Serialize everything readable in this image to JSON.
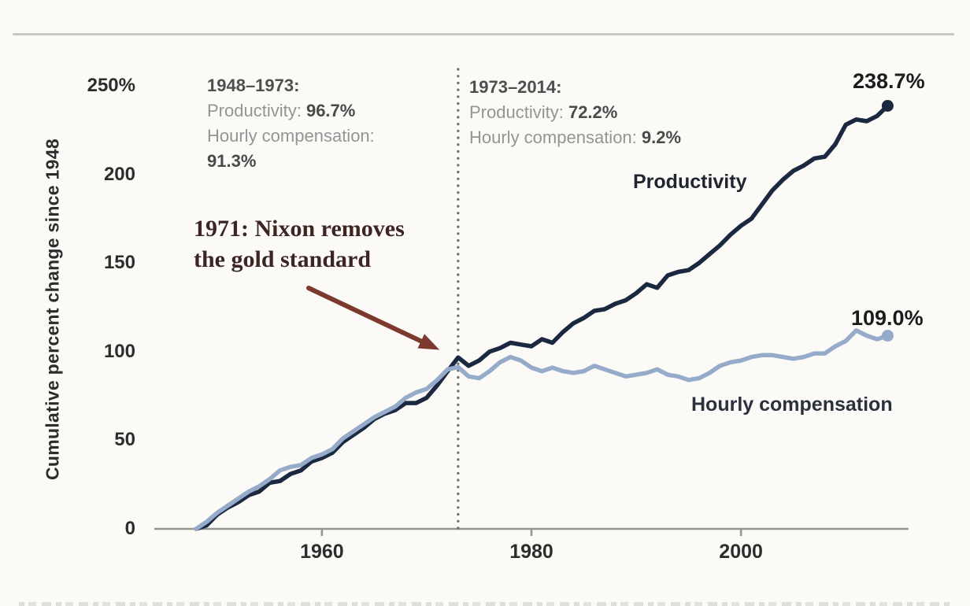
{
  "chart_data": {
    "type": "line",
    "title": "",
    "xlabel": "",
    "ylabel": "Cumulative percent change since 1948",
    "xlim": [
      1944,
      2016
    ],
    "ylim": [
      0,
      250
    ],
    "grid": false,
    "xticks": [
      1960,
      1980,
      2000
    ],
    "yticks": [
      {
        "value": 0,
        "label": "0"
      },
      {
        "value": 50,
        "label": "50"
      },
      {
        "value": 100,
        "label": "100"
      },
      {
        "value": 150,
        "label": "150"
      },
      {
        "value": 200,
        "label": "200"
      },
      {
        "value": 250,
        "label": "250%"
      }
    ],
    "colors": {
      "axis": "#959593",
      "divider": "#6c6c6c",
      "productivity": "#1a2840",
      "compensation": "#95abc9",
      "arrow": "#7c392e",
      "annotation_text": "#3c2523"
    },
    "divider_year": 1973,
    "series": [
      {
        "id": "productivity",
        "name": "Productivity",
        "end_label": "238.7%",
        "color": "#1a2840",
        "points": [
          [
            1948,
            0
          ],
          [
            1949,
            2
          ],
          [
            1950,
            8
          ],
          [
            1951,
            12
          ],
          [
            1952,
            15
          ],
          [
            1953,
            19
          ],
          [
            1954,
            21
          ],
          [
            1955,
            26
          ],
          [
            1956,
            27
          ],
          [
            1957,
            31
          ],
          [
            1958,
            33
          ],
          [
            1959,
            38
          ],
          [
            1960,
            40
          ],
          [
            1961,
            43
          ],
          [
            1962,
            49
          ],
          [
            1963,
            53
          ],
          [
            1964,
            57
          ],
          [
            1965,
            62
          ],
          [
            1966,
            65
          ],
          [
            1967,
            67
          ],
          [
            1968,
            71
          ],
          [
            1969,
            71
          ],
          [
            1970,
            74
          ],
          [
            1971,
            81
          ],
          [
            1972,
            89
          ],
          [
            1973,
            96.7
          ],
          [
            1974,
            92
          ],
          [
            1975,
            95
          ],
          [
            1976,
            100
          ],
          [
            1977,
            102
          ],
          [
            1978,
            105
          ],
          [
            1979,
            104
          ],
          [
            1980,
            103
          ],
          [
            1981,
            107
          ],
          [
            1982,
            105
          ],
          [
            1983,
            111
          ],
          [
            1984,
            116
          ],
          [
            1985,
            119
          ],
          [
            1986,
            123
          ],
          [
            1987,
            124
          ],
          [
            1988,
            127
          ],
          [
            1989,
            129
          ],
          [
            1990,
            133
          ],
          [
            1991,
            138
          ],
          [
            1992,
            136
          ],
          [
            1993,
            143
          ],
          [
            1994,
            145
          ],
          [
            1995,
            146
          ],
          [
            1996,
            150
          ],
          [
            1997,
            155
          ],
          [
            1998,
            160
          ],
          [
            1999,
            166
          ],
          [
            2000,
            171
          ],
          [
            2001,
            175
          ],
          [
            2002,
            183
          ],
          [
            2003,
            191
          ],
          [
            2004,
            197
          ],
          [
            2005,
            202
          ],
          [
            2006,
            205
          ],
          [
            2007,
            209
          ],
          [
            2008,
            210
          ],
          [
            2009,
            217
          ],
          [
            2010,
            228
          ],
          [
            2011,
            231
          ],
          [
            2012,
            230
          ],
          [
            2013,
            233
          ],
          [
            2014,
            238.7
          ]
        ]
      },
      {
        "id": "compensation",
        "name": "Hourly compensation",
        "end_label": "109.0%",
        "color": "#95abc9",
        "points": [
          [
            1948,
            0
          ],
          [
            1949,
            4
          ],
          [
            1950,
            9
          ],
          [
            1951,
            13
          ],
          [
            1952,
            17
          ],
          [
            1953,
            21
          ],
          [
            1954,
            24
          ],
          [
            1955,
            28
          ],
          [
            1956,
            33
          ],
          [
            1957,
            35
          ],
          [
            1958,
            36
          ],
          [
            1959,
            40
          ],
          [
            1960,
            42
          ],
          [
            1961,
            45
          ],
          [
            1962,
            51
          ],
          [
            1963,
            55
          ],
          [
            1964,
            59
          ],
          [
            1965,
            63
          ],
          [
            1966,
            66
          ],
          [
            1967,
            69
          ],
          [
            1968,
            74
          ],
          [
            1969,
            77
          ],
          [
            1970,
            79
          ],
          [
            1971,
            84
          ],
          [
            1972,
            90
          ],
          [
            1973,
            91.3
          ],
          [
            1974,
            86
          ],
          [
            1975,
            85
          ],
          [
            1976,
            89
          ],
          [
            1977,
            94
          ],
          [
            1978,
            97
          ],
          [
            1979,
            95
          ],
          [
            1980,
            91
          ],
          [
            1981,
            89
          ],
          [
            1982,
            91
          ],
          [
            1983,
            89
          ],
          [
            1984,
            88
          ],
          [
            1985,
            89
          ],
          [
            1986,
            92
          ],
          [
            1987,
            90
          ],
          [
            1988,
            88
          ],
          [
            1989,
            86
          ],
          [
            1990,
            87
          ],
          [
            1991,
            88
          ],
          [
            1992,
            90
          ],
          [
            1993,
            87
          ],
          [
            1994,
            86
          ],
          [
            1995,
            84
          ],
          [
            1996,
            85
          ],
          [
            1997,
            88
          ],
          [
            1998,
            92
          ],
          [
            1999,
            94
          ],
          [
            2000,
            95
          ],
          [
            2001,
            97
          ],
          [
            2002,
            98
          ],
          [
            2003,
            98
          ],
          [
            2004,
            97
          ],
          [
            2005,
            96
          ],
          [
            2006,
            97
          ],
          [
            2007,
            99
          ],
          [
            2008,
            99
          ],
          [
            2009,
            103
          ],
          [
            2010,
            106
          ],
          [
            2011,
            112
          ],
          [
            2012,
            109
          ],
          [
            2013,
            107
          ],
          [
            2014,
            109
          ]
        ]
      }
    ],
    "period_stats": [
      {
        "period": "1948–1973:",
        "productivity_label": "Productivity:",
        "productivity_value": "96.7%",
        "compensation_label": "Hourly compensation:",
        "compensation_value": "91.3%"
      },
      {
        "period": "1973–2014:",
        "productivity_label": "Productivity:",
        "productivity_value": "72.2%",
        "compensation_label": "Hourly compensation:",
        "compensation_value": "9.2%"
      }
    ],
    "annotations": {
      "nixon": {
        "line1": "1971: Nixon removes",
        "line2": "the gold standard",
        "target_year": 1971
      }
    }
  }
}
